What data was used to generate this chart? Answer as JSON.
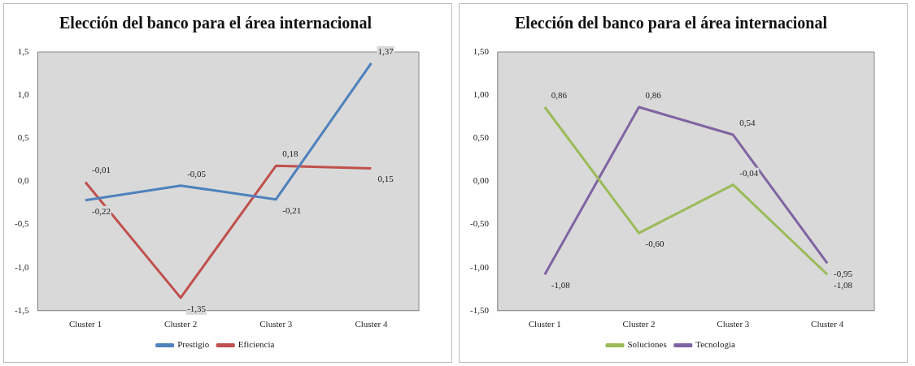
{
  "chart_data": [
    {
      "type": "line",
      "title": "Elección del banco para el área internacional",
      "categories": [
        "Cluster 1",
        "Cluster 2",
        "Cluster 3",
        "Cluster 4"
      ],
      "series": [
        {
          "name": "Prestigio",
          "color": "#4f81bd",
          "values": [
            -0.22,
            -0.05,
            -0.21,
            1.37
          ],
          "value_labels": [
            "-0,22",
            "-0,05",
            "-0,21",
            "1,37"
          ]
        },
        {
          "name": "Eficiencia",
          "color": "#c0504d",
          "values": [
            -0.01,
            -1.35,
            0.18,
            0.15
          ],
          "value_labels": [
            "-0,01",
            "-1,35",
            "0,18",
            "0,15"
          ]
        }
      ],
      "ylim": [
        -1.5,
        1.5
      ],
      "yticks": [
        {
          "value": -1.5,
          "label": "-1,5"
        },
        {
          "value": -1,
          "label": "-1,0"
        },
        {
          "value": -0.5,
          "label": "-0,5"
        },
        {
          "value": 0,
          "label": "0,0"
        },
        {
          "value": 0.5,
          "label": "0,5"
        },
        {
          "value": 1,
          "label": "1,0"
        },
        {
          "value": 1.5,
          "label": "1,5"
        }
      ],
      "legend": "bottom",
      "marker": "none"
    },
    {
      "type": "line",
      "title": "Elección del banco para el área internacional",
      "categories": [
        "Cluster 1",
        "Cluster 2",
        "Cluster 3",
        "Cluster 4"
      ],
      "series": [
        {
          "name": "Soluciones",
          "color": "#9bbb59",
          "values": [
            0.86,
            -0.6,
            -0.04,
            -1.08
          ],
          "value_labels": [
            "0,86",
            "-0,60",
            "-0,04",
            "-1,08"
          ]
        },
        {
          "name": "Tecnologia",
          "color": "#8064a2",
          "values": [
            -1.08,
            0.86,
            0.54,
            -0.95
          ],
          "value_labels": [
            "-1,08",
            "0,86",
            "0,54",
            "-0,95"
          ]
        }
      ],
      "ylim": [
        -1.5,
        1.5
      ],
      "yticks": [
        {
          "value": -1.5,
          "label": "-1,50"
        },
        {
          "value": -1,
          "label": "-1,00"
        },
        {
          "value": -0.5,
          "label": "-0,50"
        },
        {
          "value": 0,
          "label": "0,00"
        },
        {
          "value": 0.5,
          "label": "0,50"
        },
        {
          "value": 1,
          "label": "1,00"
        },
        {
          "value": 1.5,
          "label": "1,50"
        }
      ],
      "legend": "bottom",
      "marker": "none"
    }
  ]
}
